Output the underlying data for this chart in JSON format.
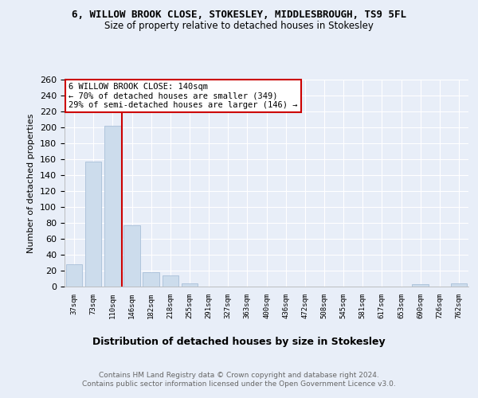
{
  "title": "6, WILLOW BROOK CLOSE, STOKESLEY, MIDDLESBROUGH, TS9 5FL",
  "subtitle": "Size of property relative to detached houses in Stokesley",
  "xlabel": "Distribution of detached houses by size in Stokesley",
  "ylabel": "Number of detached properties",
  "bar_labels": [
    "37sqm",
    "73sqm",
    "110sqm",
    "146sqm",
    "182sqm",
    "218sqm",
    "255sqm",
    "291sqm",
    "327sqm",
    "363sqm",
    "400sqm",
    "436sqm",
    "472sqm",
    "508sqm",
    "545sqm",
    "581sqm",
    "617sqm",
    "653sqm",
    "690sqm",
    "726sqm",
    "762sqm"
  ],
  "bar_values": [
    28,
    157,
    202,
    77,
    18,
    14,
    4,
    0,
    0,
    0,
    0,
    0,
    0,
    0,
    0,
    0,
    0,
    0,
    3,
    0,
    4
  ],
  "bar_color": "#ccdcec",
  "bar_edgecolor": "#a8c0d8",
  "vline_x": 2.5,
  "vline_color": "#cc0000",
  "annotation_text": "6 WILLOW BROOK CLOSE: 140sqm\n← 70% of detached houses are smaller (349)\n29% of semi-detached houses are larger (146) →",
  "annotation_box_color": "#ffffff",
  "annotation_box_edgecolor": "#cc0000",
  "ylim": [
    0,
    260
  ],
  "yticks": [
    0,
    20,
    40,
    60,
    80,
    100,
    120,
    140,
    160,
    180,
    200,
    220,
    240,
    260
  ],
  "bg_color": "#e8eef8",
  "plot_bg_color": "#e8eef8",
  "footer": "Contains HM Land Registry data © Crown copyright and database right 2024.\nContains public sector information licensed under the Open Government Licence v3.0.",
  "title_fontsize": 9,
  "subtitle_fontsize": 8.5,
  "ylabel_fontsize": 8,
  "xlabel_fontsize": 9
}
